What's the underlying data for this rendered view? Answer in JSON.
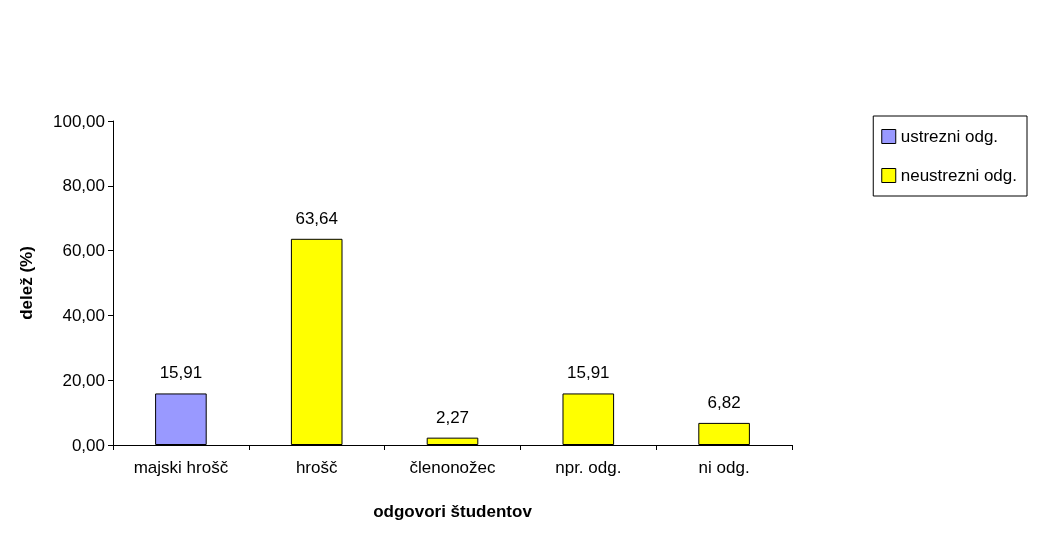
{
  "chart_data": {
    "type": "bar",
    "xlabel": "odgovori študentov",
    "ylabel": "delež (%)",
    "categories": [
      "majski hrošč",
      "hrošč",
      "členonožec",
      "npr. odg.",
      "ni odg."
    ],
    "series": [
      {
        "name": "ustrezni odg.",
        "color": "#9999ff",
        "values": [
          15.91,
          null,
          null,
          null,
          null
        ],
        "value_labels": [
          "15,91",
          null,
          null,
          null,
          null
        ]
      },
      {
        "name": "neustrezni odg.",
        "color": "#ffff00",
        "values": [
          null,
          63.64,
          2.27,
          15.91,
          6.82
        ],
        "value_labels": [
          null,
          "63,64",
          "2,27",
          "15,91",
          "6,82"
        ]
      }
    ],
    "ylim": [
      0,
      100
    ],
    "yticks": [
      {
        "value": 0,
        "label": "0,00"
      },
      {
        "value": 20,
        "label": "20,00"
      },
      {
        "value": 40,
        "label": "40,00"
      },
      {
        "value": 60,
        "label": "60,00"
      },
      {
        "value": 80,
        "label": "80,00"
      },
      {
        "value": 100,
        "label": "100,00"
      }
    ],
    "grid": false,
    "legend": "right"
  }
}
